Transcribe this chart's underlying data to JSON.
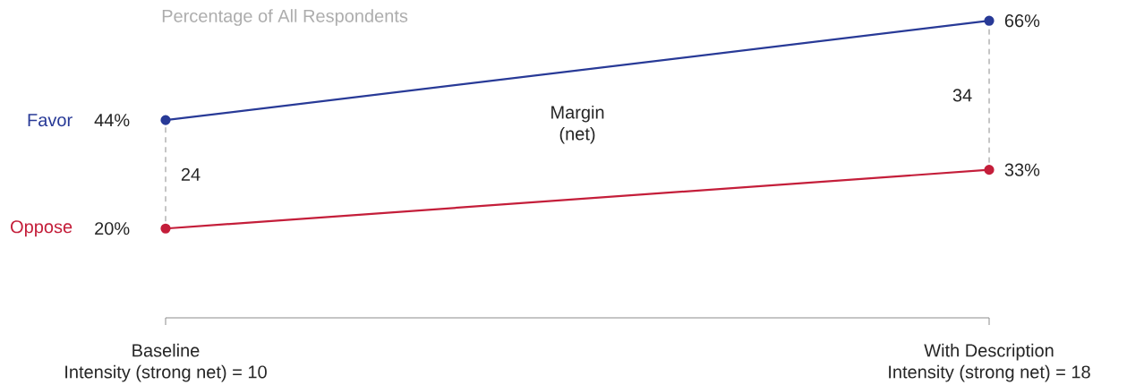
{
  "chart_data": {
    "type": "line",
    "title": "Percentage of All Respondents",
    "categories": [
      "Baseline",
      "With Description"
    ],
    "series": [
      {
        "name": "Favor",
        "color": "#283a97",
        "values": [
          44,
          66
        ],
        "value_labels": [
          "44%",
          "66%"
        ]
      },
      {
        "name": "Oppose",
        "color": "#c41e3a",
        "values": [
          20,
          33
        ],
        "value_labels": [
          "20%",
          "33%"
        ]
      }
    ],
    "marker": "circle",
    "line_style": "solid",
    "annotations": [
      "Margin (net)",
      "24",
      "34",
      "Intensity (strong net) = 10",
      "Intensity (strong net) = 18"
    ]
  }
}
